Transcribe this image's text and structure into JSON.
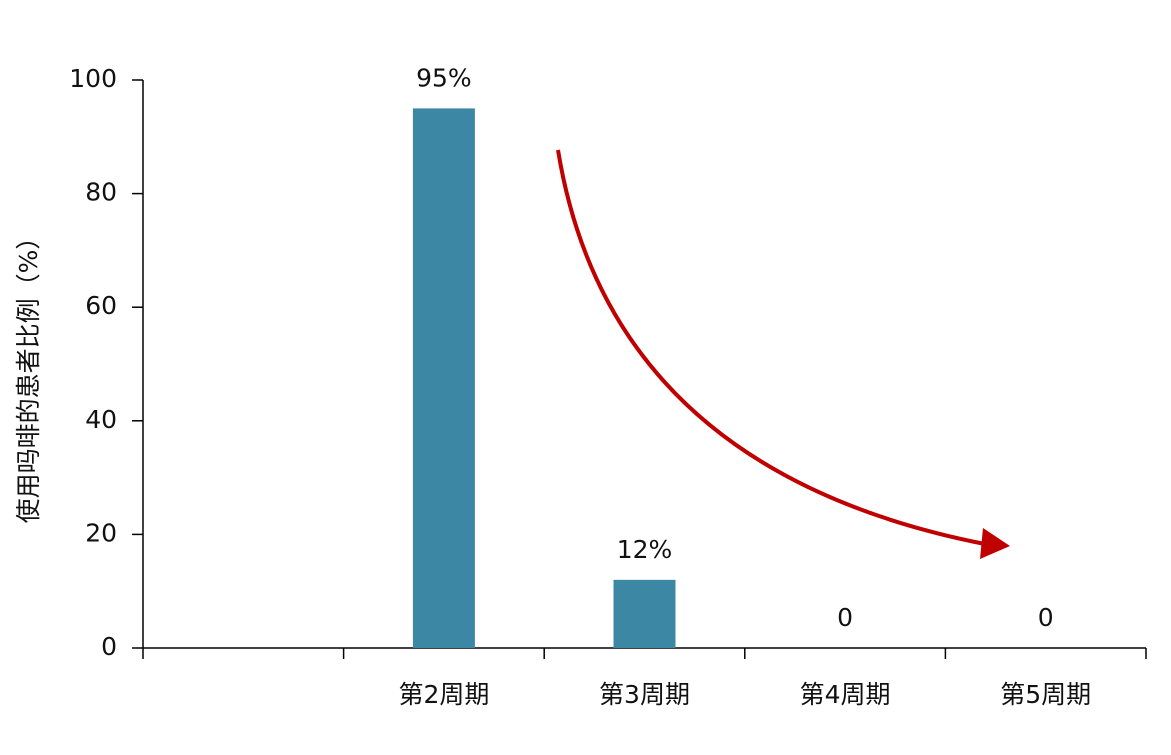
{
  "chart_data": {
    "type": "bar",
    "y_label": "使用吗啡的患者比例（%）",
    "categories": [
      null,
      "第2周期",
      "第3周期",
      "第4周期",
      "第5周期"
    ],
    "values": [
      null,
      95,
      12,
      0,
      0
    ],
    "value_labels": [
      null,
      "95%",
      "12%",
      "0",
      "0"
    ],
    "color": "#3c87a3",
    "ylim": [
      0,
      100
    ],
    "yticks": [
      0,
      20,
      40,
      60,
      80,
      100
    ],
    "grid": false
  }
}
